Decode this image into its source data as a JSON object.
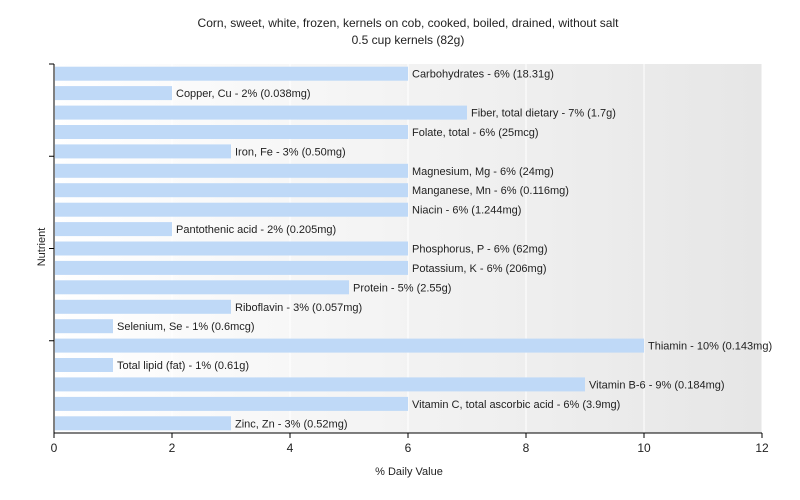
{
  "chart_data": {
    "type": "bar",
    "orientation": "horizontal",
    "title": "Corn, sweet, white, frozen, kernels on cob, cooked, boiled, drained, without salt",
    "subtitle": "0.5 cup kernels (82g)",
    "xlabel": "% Daily Value",
    "ylabel": "Nutrient",
    "xlim": [
      0,
      12
    ],
    "xticks": [
      0,
      2,
      4,
      6,
      8,
      10,
      12
    ],
    "grid": true,
    "bar_color": "#bfd9f7",
    "categories": [
      "Carbohydrates",
      "Copper, Cu",
      "Fiber, total dietary",
      "Folate, total",
      "Iron, Fe",
      "Magnesium, Mg",
      "Manganese, Mn",
      "Niacin",
      "Pantothenic acid",
      "Phosphorus, P",
      "Potassium, K",
      "Protein",
      "Riboflavin",
      "Selenium, Se",
      "Thiamin",
      "Total lipid (fat)",
      "Vitamin B-6",
      "Vitamin C, total ascorbic acid",
      "Zinc, Zn"
    ],
    "values": [
      6,
      2,
      7,
      6,
      3,
      6,
      6,
      6,
      2,
      6,
      6,
      5,
      3,
      1,
      10,
      1,
      9,
      6,
      3
    ],
    "labels": [
      "Carbohydrates - 6% (18.31g)",
      "Copper, Cu - 2% (0.038mg)",
      "Fiber, total dietary - 7% (1.7g)",
      "Folate, total - 6% (25mcg)",
      "Iron, Fe - 3% (0.50mg)",
      "Magnesium, Mg - 6% (24mg)",
      "Manganese, Mn - 6% (0.116mg)",
      "Niacin - 6% (1.244mg)",
      "Pantothenic acid - 2% (0.205mg)",
      "Phosphorus, P - 6% (62mg)",
      "Potassium, K - 6% (206mg)",
      "Protein - 5% (2.55g)",
      "Riboflavin - 3% (0.057mg)",
      "Selenium, Se - 1% (0.6mcg)",
      "Thiamin - 10% (0.143mg)",
      "Total lipid (fat) - 1% (0.61g)",
      "Vitamin B-6 - 9% (0.184mg)",
      "Vitamin C, total ascorbic acid - 6% (3.9mg)",
      "Zinc, Zn - 3% (0.52mg)"
    ]
  }
}
